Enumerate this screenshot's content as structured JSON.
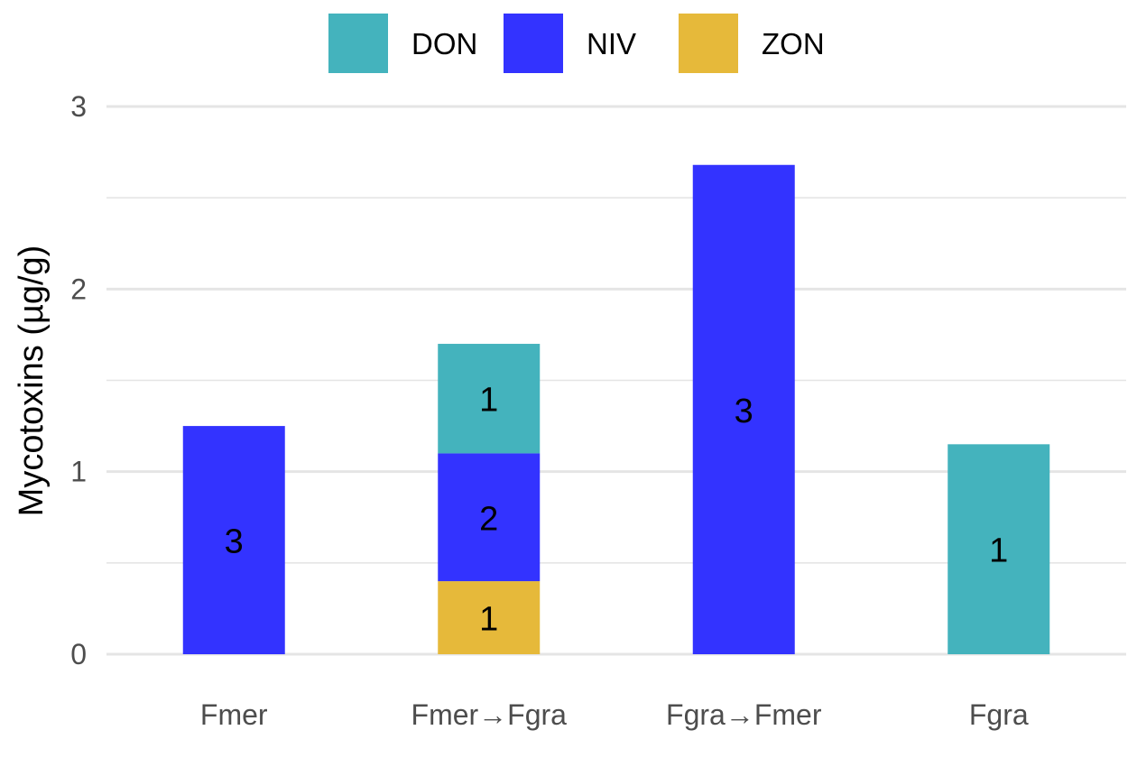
{
  "chart_data": {
    "type": "bar",
    "stacked": true,
    "title": "",
    "xlabel": "",
    "ylabel": "Mycotoxins (µg/g)",
    "categories": [
      "Fmer",
      "Fmer→Fgra",
      "Fgra→Fmer",
      "Fgra"
    ],
    "ylim": [
      0,
      3
    ],
    "yticks": [
      0,
      1,
      2,
      3
    ],
    "grid": true,
    "legend_position": "top",
    "series": [
      {
        "name": "ZON",
        "color": "#e6b93a",
        "values": [
          0,
          0.4,
          0,
          0
        ],
        "labels": [
          "",
          "1",
          "",
          ""
        ]
      },
      {
        "name": "NIV",
        "color": "#3333ff",
        "values": [
          1.25,
          0.7,
          2.68,
          0
        ],
        "labels": [
          "3",
          "2",
          "3",
          ""
        ]
      },
      {
        "name": "DON",
        "color": "#44b3bd",
        "values": [
          0,
          0.6,
          0,
          1.15
        ],
        "labels": [
          "",
          "1",
          "",
          "1"
        ]
      }
    ],
    "legend_order": [
      "DON",
      "NIV",
      "ZON"
    ]
  }
}
